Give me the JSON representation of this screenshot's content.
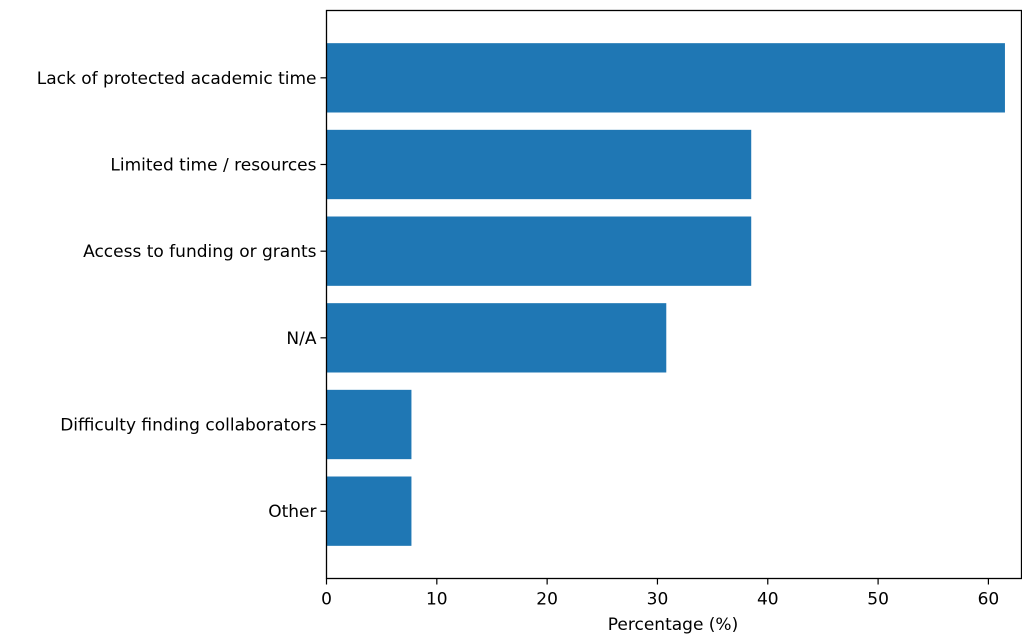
{
  "chart_data": {
    "type": "bar",
    "orientation": "horizontal",
    "categories": [
      "Lack of protected academic time",
      "Limited time / resources",
      "Access to funding or grants",
      "N/A",
      "Difficulty finding collaborators",
      "Other"
    ],
    "values": [
      61.5,
      38.5,
      38.5,
      30.8,
      7.7,
      7.7
    ],
    "title": "",
    "xlabel": "Percentage (%)",
    "ylabel": "",
    "xlim": [
      0,
      63
    ],
    "xticks": [
      0,
      10,
      20,
      30,
      40,
      50,
      60
    ],
    "grid": false,
    "legend": "none",
    "bar_color": "#1f77b4"
  }
}
